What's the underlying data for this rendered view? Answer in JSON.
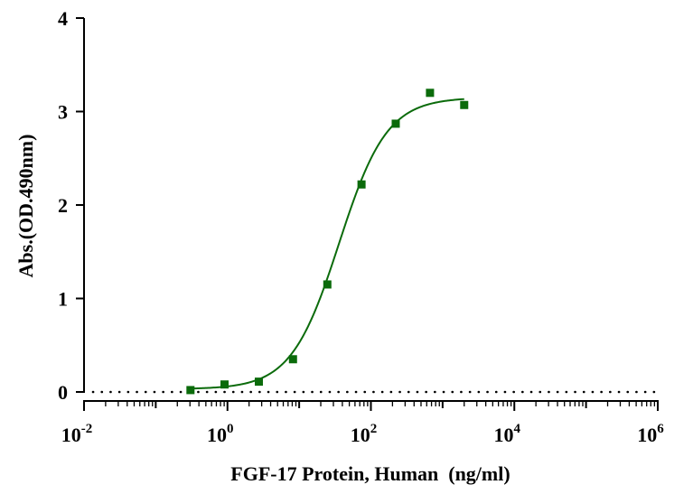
{
  "chart_data": {
    "type": "scatter",
    "title": "",
    "xlabel": "FGF-17 Protein, Human  (ng/ml)",
    "ylabel": "Abs.(OD.490nm)",
    "x_scale": "log10",
    "xlim": [
      0.01,
      1000000
    ],
    "ylim": [
      0,
      4
    ],
    "x_ticks": [
      {
        "base": "10",
        "exp": "-2"
      },
      {
        "base": "10",
        "exp": "0"
      },
      {
        "base": "10",
        "exp": "2"
      },
      {
        "base": "10",
        "exp": "4"
      },
      {
        "base": "10",
        "exp": "6"
      }
    ],
    "y_ticks": [
      "0",
      "1",
      "2",
      "3",
      "4"
    ],
    "grid": false,
    "legend": "none",
    "baseline": {
      "y": 0,
      "style": "dotted"
    },
    "series": [
      {
        "marker": "square",
        "color": "#0b6b0b",
        "x": [
          0.305,
          0.91,
          2.74,
          8.2,
          24.7,
          74,
          222,
          667,
          2000
        ],
        "y": [
          0.02,
          0.08,
          0.11,
          0.35,
          1.15,
          2.22,
          2.87,
          3.2,
          3.07
        ]
      }
    ],
    "fit_curve": {
      "model": "4PL",
      "color": "#0b6b0b",
      "bottom": 0.03,
      "top": 3.15,
      "ec50": 36,
      "hill": 1.3,
      "x_range": [
        0.305,
        2000
      ]
    }
  }
}
